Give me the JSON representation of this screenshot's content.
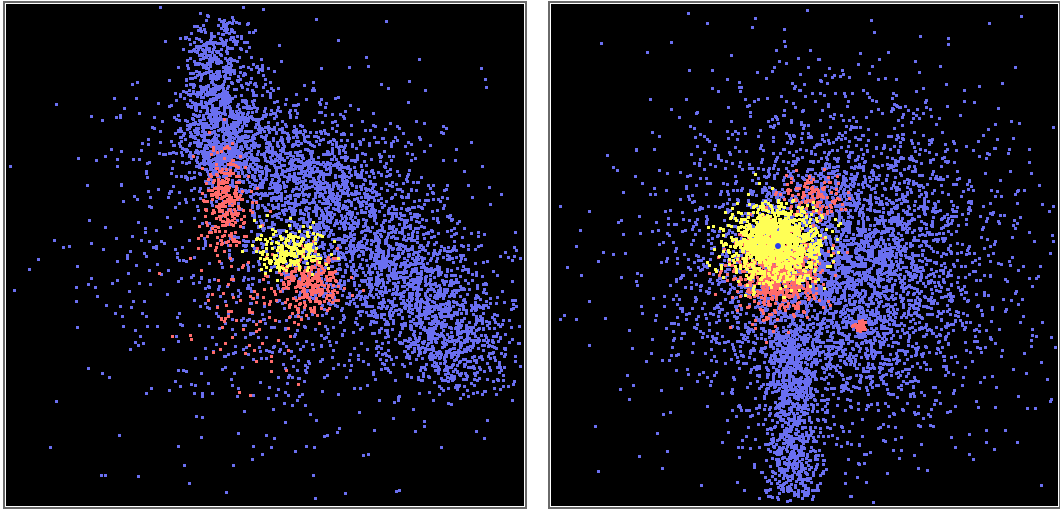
{
  "chart_data": [
    {
      "type": "scatter",
      "panel": "left",
      "background": "#000000",
      "series": [
        {
          "color": "#6a6ff0",
          "shape": "elongated diagonal band, upper-left to lower-right",
          "density": "high",
          "points_approx": 5200
        },
        {
          "color": "#ff6b6b",
          "shape": "core clumps along band",
          "density": "medium",
          "points_approx": 620
        },
        {
          "color": "#ffff55",
          "shape": "small central core",
          "density": "low",
          "points_approx": 210
        }
      ]
    },
    {
      "type": "scatter",
      "panel": "right",
      "background": "#000000",
      "series": [
        {
          "color": "#6a6ff0",
          "shape": "broad diffuse halo with downward tail",
          "density": "high",
          "points_approx": 5600
        },
        {
          "color": "#ff6b6b",
          "shape": "compact core below yellow region",
          "density": "medium",
          "points_approx": 900
        },
        {
          "color": "#ffff55",
          "shape": "dense compact core, upper-left of center",
          "density": "high",
          "points_approx": 1300
        }
      ]
    }
  ]
}
